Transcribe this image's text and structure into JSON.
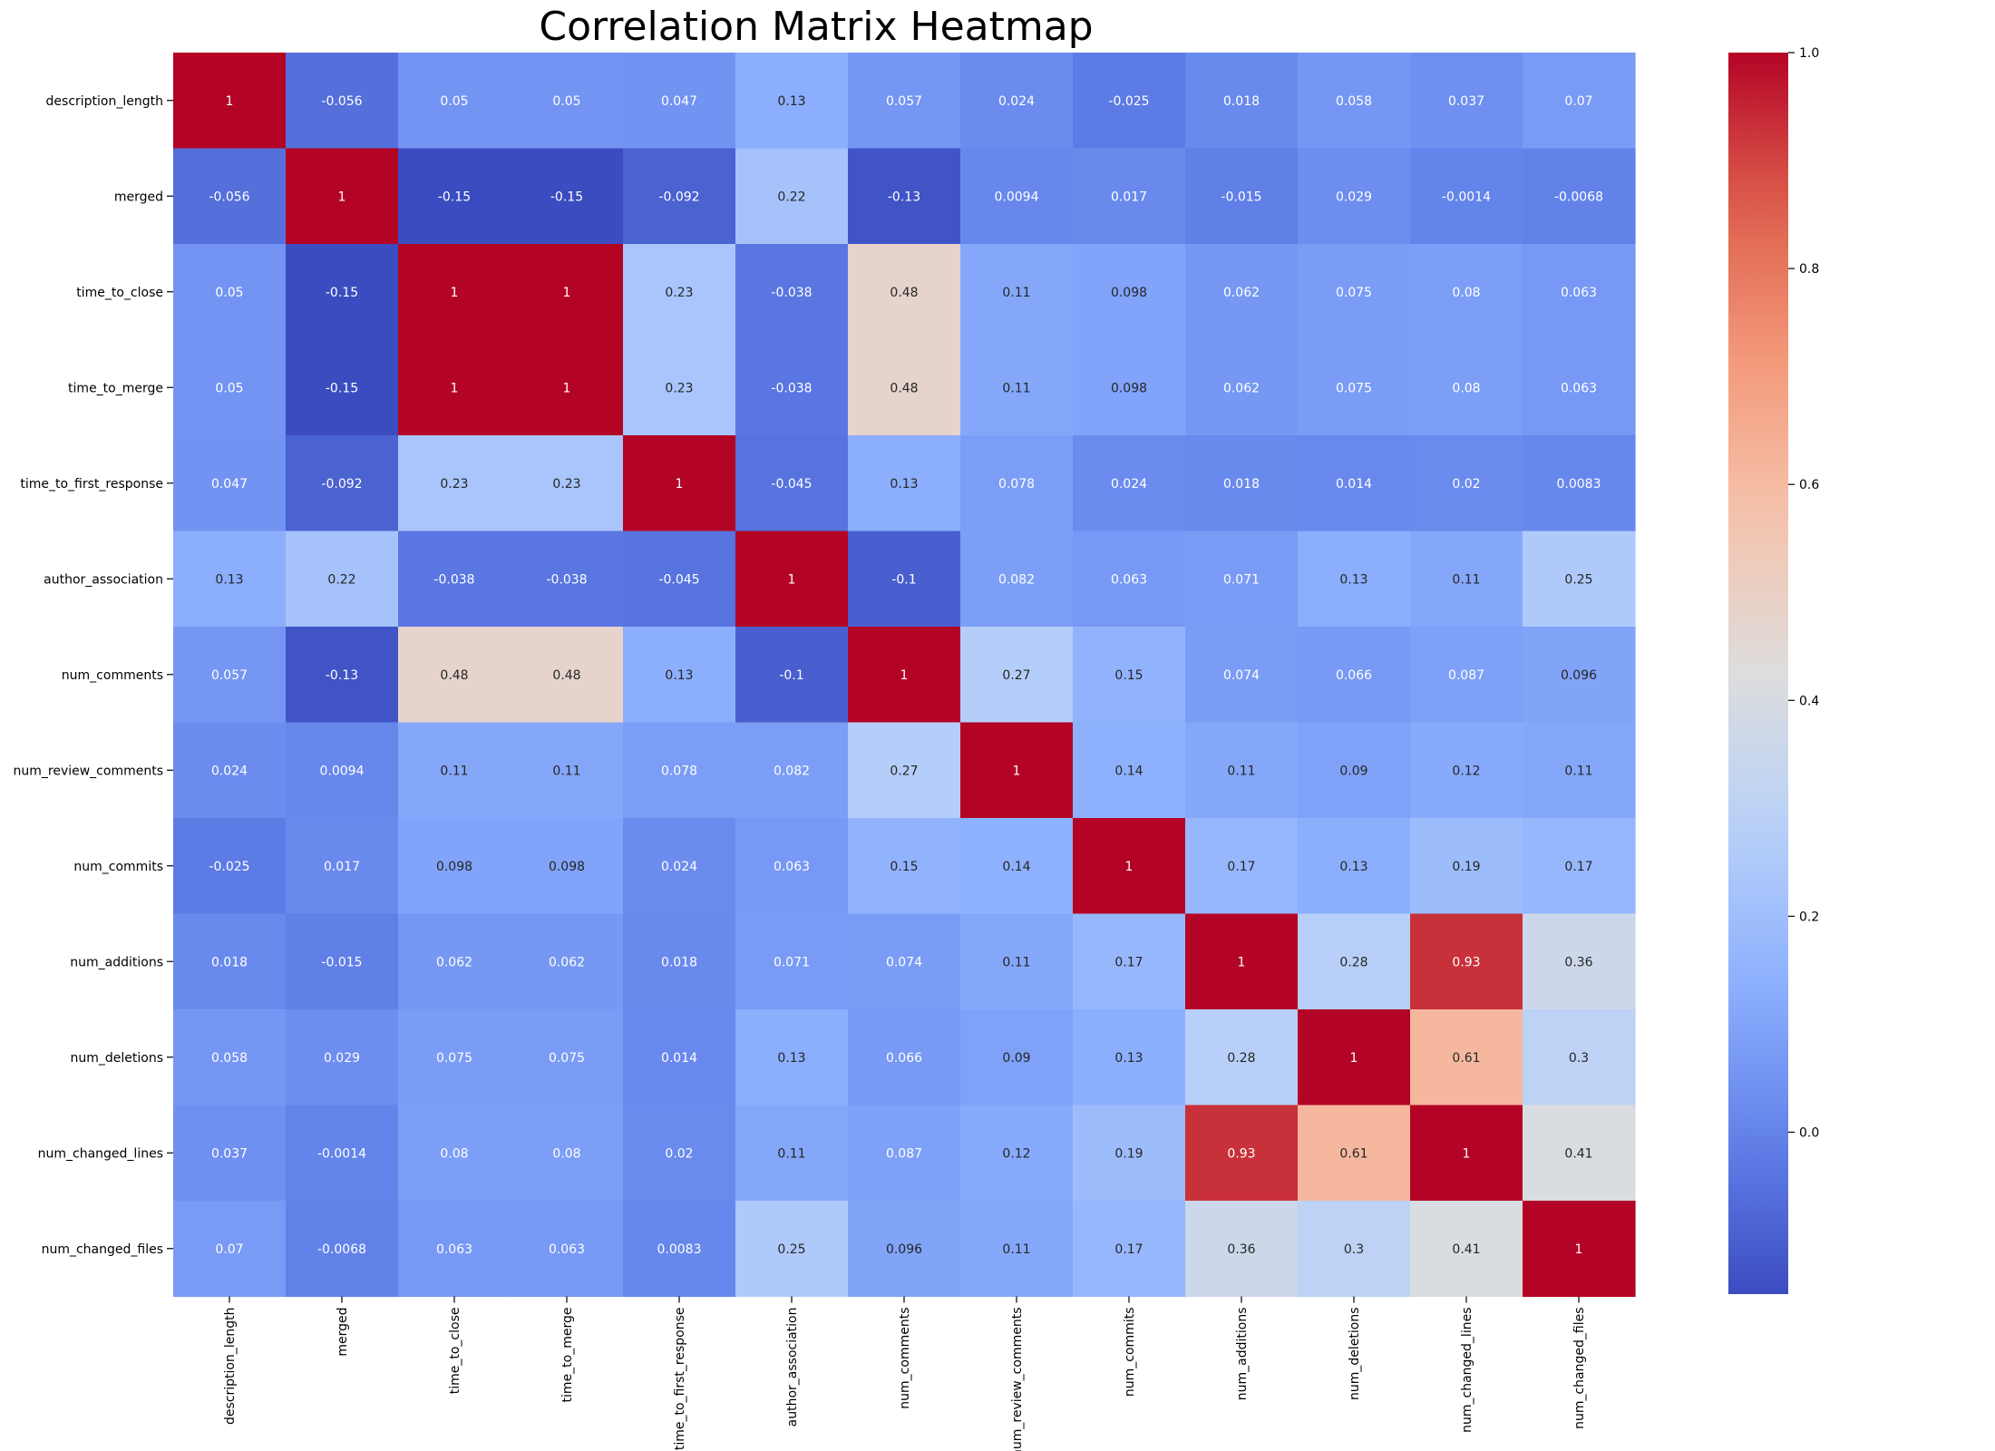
{
  "chart_data": {
    "type": "heatmap",
    "title": "Correlation Matrix Heatmap",
    "labels": [
      "description_length",
      "merged",
      "time_to_close",
      "time_to_merge",
      "time_to_first_response",
      "author_association",
      "num_comments",
      "num_review_comments",
      "num_commits",
      "num_additions",
      "num_deletions",
      "num_changed_lines",
      "num_changed_files"
    ],
    "values": [
      [
        1,
        -0.056,
        0.05,
        0.05,
        0.047,
        0.13,
        0.057,
        0.024,
        -0.025,
        0.018,
        0.058,
        0.037,
        0.07
      ],
      [
        -0.056,
        1,
        -0.15,
        -0.15,
        -0.092,
        0.22,
        -0.13,
        0.0094,
        0.017,
        -0.015,
        0.029,
        -0.0014,
        -0.0068
      ],
      [
        0.05,
        -0.15,
        1,
        1,
        0.23,
        -0.038,
        0.48,
        0.11,
        0.098,
        0.062,
        0.075,
        0.08,
        0.063
      ],
      [
        0.05,
        -0.15,
        1,
        1,
        0.23,
        -0.038,
        0.48,
        0.11,
        0.098,
        0.062,
        0.075,
        0.08,
        0.063
      ],
      [
        0.047,
        -0.092,
        0.23,
        0.23,
        1,
        -0.045,
        0.13,
        0.078,
        0.024,
        0.018,
        0.014,
        0.02,
        0.0083
      ],
      [
        0.13,
        0.22,
        -0.038,
        -0.038,
        -0.045,
        1,
        -0.1,
        0.082,
        0.063,
        0.071,
        0.13,
        0.11,
        0.25
      ],
      [
        0.057,
        -0.13,
        0.48,
        0.48,
        0.13,
        -0.1,
        1,
        0.27,
        0.15,
        0.074,
        0.066,
        0.087,
        0.096
      ],
      [
        0.024,
        0.0094,
        0.11,
        0.11,
        0.078,
        0.082,
        0.27,
        1,
        0.14,
        0.11,
        0.09,
        0.12,
        0.11
      ],
      [
        -0.025,
        0.017,
        0.098,
        0.098,
        0.024,
        0.063,
        0.15,
        0.14,
        1,
        0.17,
        0.13,
        0.19,
        0.17
      ],
      [
        0.018,
        -0.015,
        0.062,
        0.062,
        0.018,
        0.071,
        0.074,
        0.11,
        0.17,
        1,
        0.28,
        0.93,
        0.36
      ],
      [
        0.058,
        0.029,
        0.075,
        0.075,
        0.014,
        0.13,
        0.066,
        0.09,
        0.13,
        0.28,
        1,
        0.61,
        0.3
      ],
      [
        0.037,
        -0.0014,
        0.08,
        0.08,
        0.02,
        0.11,
        0.087,
        0.12,
        0.19,
        0.93,
        0.61,
        1,
        0.41
      ],
      [
        0.07,
        -0.0068,
        0.063,
        0.063,
        0.0083,
        0.25,
        0.096,
        0.11,
        0.17,
        0.36,
        0.3,
        0.41,
        1
      ]
    ],
    "colormap": "coolwarm",
    "colorbar": {
      "vmin": -0.15,
      "vmax": 1.0,
      "ticks": [
        0.0,
        0.2,
        0.4,
        0.6,
        0.8,
        1.0
      ],
      "tick_labels": [
        "0.0",
        "0.2",
        "0.4",
        "0.6",
        "0.8",
        "1.0"
      ]
    },
    "annotate": true,
    "xlabel": "",
    "ylabel": ""
  }
}
